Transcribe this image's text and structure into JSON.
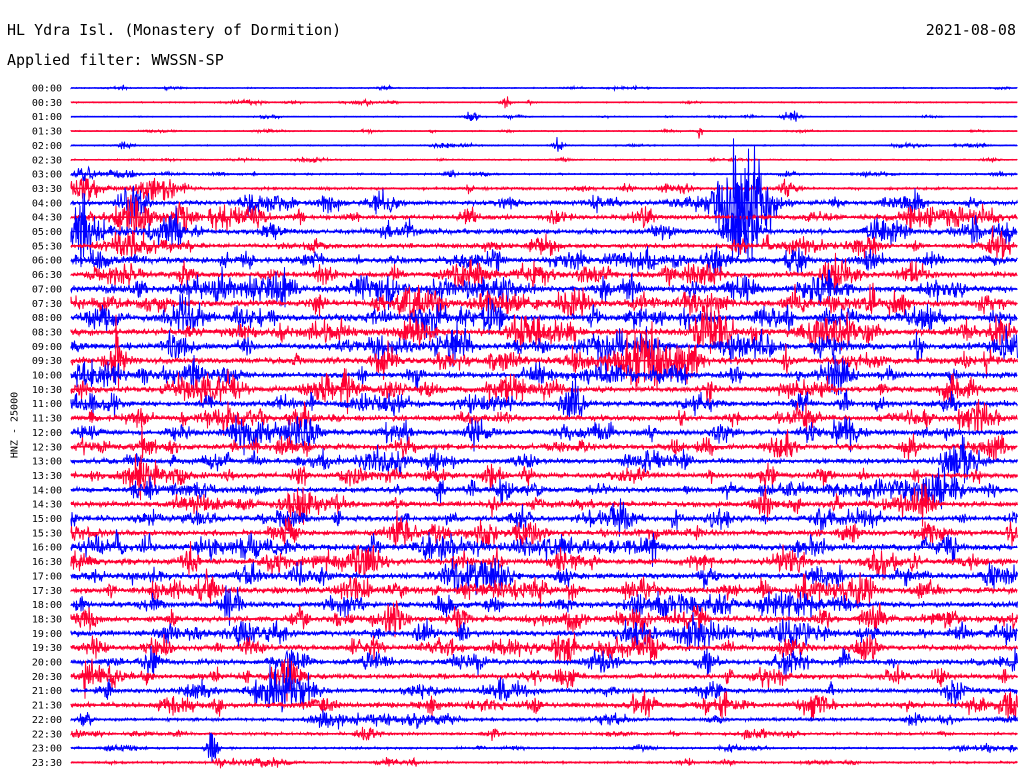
{
  "header": {
    "title": "HL Ydra Isl. (Monastery of Dormition)",
    "date": "2021-08-08",
    "filter": "Applied filter: WWSSN-SP"
  },
  "chart_data": {
    "type": "line",
    "ylabel": "HNZ - 25000",
    "colors": {
      "even": "#0000ff",
      "odd": "#ff0033"
    },
    "rows": [
      "00:00",
      "00:30",
      "01:00",
      "01:30",
      "02:00",
      "02:30",
      "03:00",
      "03:30",
      "04:00",
      "04:30",
      "05:00",
      "05:30",
      "06:00",
      "06:30",
      "07:00",
      "07:30",
      "08:00",
      "08:30",
      "09:00",
      "09:30",
      "10:00",
      "10:30",
      "11:00",
      "11:30",
      "12:00",
      "12:30",
      "13:00",
      "13:30",
      "14:00",
      "14:30",
      "15:00",
      "15:30",
      "16:00",
      "16:30",
      "17:00",
      "17:30",
      "18:00",
      "18:30",
      "19:00",
      "19:30",
      "20:00",
      "20:30",
      "21:00",
      "21:30",
      "22:00",
      "22:30",
      "23:00",
      "23:30"
    ],
    "noise": [
      0.6,
      0.7,
      0.6,
      0.6,
      0.7,
      0.8,
      1.0,
      1.5,
      2.5,
      2.5,
      3.0,
      2.6,
      3.0,
      3.2,
      3.5,
      3.6,
      3.6,
      3.8,
      3.6,
      3.6,
      3.3,
      3.3,
      3.1,
      3.1,
      3.1,
      3.1,
      2.9,
      2.9,
      3.1,
      3.0,
      3.0,
      3.0,
      3.4,
      3.4,
      3.4,
      3.5,
      3.3,
      3.3,
      3.1,
      3.1,
      2.9,
      2.9,
      2.7,
      2.9,
      1.8,
      1.5,
      1.2,
      1.2
    ]
  }
}
